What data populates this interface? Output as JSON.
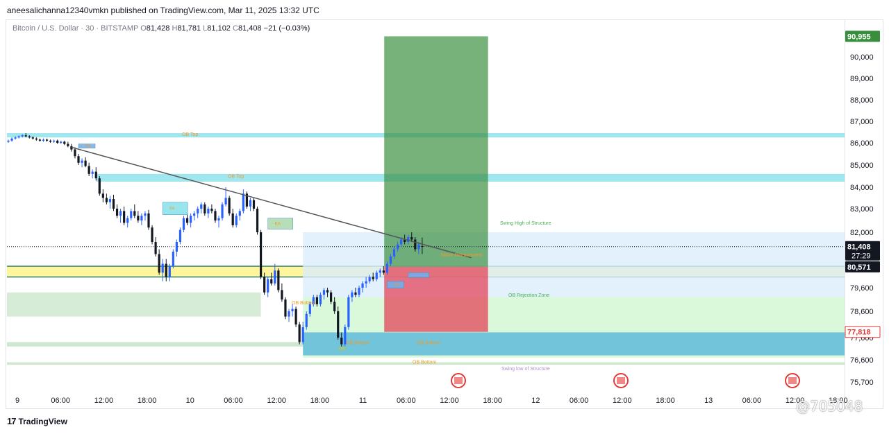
{
  "header": {
    "publisher": "aneesalichanna12340vmkn published on TradingView.com, Mar 11, 2025 13:32 UTC",
    "symbol_desc": "Bitcoin / U.S. Dollar · 30 · BITSTAMP",
    "o_label": "O",
    "o_value": "81,428",
    "h_label": "H",
    "h_value": "81,781",
    "l_label": "L",
    "l_value": "81,102",
    "c_label": "C",
    "c_value": "81,408",
    "change": "−21 (−0.03%)"
  },
  "footer": {
    "logo_text": "TradingView",
    "watermark": "@705048"
  },
  "colors": {
    "bull": "#131722",
    "bear": "#2962ff",
    "ob_top": "#80deea",
    "yellow_zone": "#fff59d",
    "green_zone": "#c8e6c9",
    "tp_zone": "#388e3c",
    "sl_zone": "#e53950",
    "blue_box": "#4fb3d9",
    "label_orange": "#ef9a2a",
    "label_green": "#4caf50",
    "accent_price": "#131722",
    "tp_label_bg": "#388e3c",
    "sl_label_bg": "#e53935"
  },
  "chart_data": {
    "type": "candlestick",
    "title": "Bitcoin / U.S. Dollar · 30 · BITSTAMP",
    "x_tick_labels": [
      "9",
      "06:00",
      "12:00",
      "18:00",
      "10",
      "06:00",
      "12:00",
      "18:00",
      "11",
      "06:00",
      "12:00",
      "18:00",
      "12",
      "06:00",
      "12:00",
      "18:00",
      "13",
      "06:00",
      "12:00",
      "18:00"
    ],
    "y_tick_labels": [
      75700,
      76600,
      77600,
      78600,
      79600,
      80600,
      82000,
      83000,
      84000,
      85000,
      86000,
      87000,
      88000,
      89000,
      90000
    ],
    "ylim": [
      75300,
      91300
    ],
    "price_labels": [
      {
        "text": "90,955",
        "value": 90955,
        "kind": "tp"
      },
      {
        "text": "81,408",
        "value": 81408,
        "kind": "last",
        "sub": "27:29"
      },
      {
        "text": "80,571",
        "value": 80571,
        "kind": "mark"
      },
      {
        "text": "77,818",
        "value": 77818,
        "kind": "sl"
      }
    ],
    "position": {
      "entry": 80571,
      "target": 90955,
      "stop": 77818,
      "x_start_index": 104,
      "x_end_index": 134
    },
    "trendline": {
      "from": {
        "index": 18,
        "price": 85800
      },
      "to": {
        "index": 132,
        "price": 80950
      }
    },
    "zones": [
      {
        "kind": "ob_top",
        "label": "OB Top",
        "y_top": 86450,
        "y_bottom": 86250,
        "x_from_index": 0
      },
      {
        "kind": "ob_top",
        "label": "OB Top",
        "y_top": 84600,
        "y_bottom": 84250,
        "x_from_index": 25
      },
      {
        "kind": "yellow",
        "label": "",
        "y_top": 80600,
        "y_bottom": 80100,
        "x_from_index": 0
      },
      {
        "kind": "green_band",
        "label": "OB Bottom",
        "y_top": 79400,
        "y_bottom": 78400,
        "x_from_index": 0,
        "x_to_index": 72
      },
      {
        "kind": "green_thin",
        "label": "",
        "y_top": 77400,
        "y_bottom": 77200,
        "x_from_index": 0
      },
      {
        "kind": "green_thin",
        "label": "OB Bottom",
        "y_top": 76500,
        "y_bottom": 76400,
        "x_from_index": 0
      },
      {
        "kind": "light_blue",
        "label": "",
        "y_top": 82000,
        "y_bottom": 79200,
        "x_from_index": 84
      },
      {
        "kind": "light_green",
        "label": "",
        "y_top": 79200,
        "y_bottom": 76700,
        "x_from_index": 84
      },
      {
        "kind": "blue_box",
        "label": "OB Bottom",
        "y_top": 77800,
        "y_bottom": 76800,
        "x_from_index": 84
      }
    ],
    "annotations": [
      "Swing High of Structure",
      "Minor Retracement",
      "OB Rejection Zone",
      "Swing low of Structure",
      "OB Top",
      "OB Top",
      "OB Bottom",
      "OB Bottom",
      "OB Bottom",
      "OB Bottom",
      "FA",
      "FA",
      "EA",
      "FA",
      "sell"
    ],
    "candles": [
      [
        86050,
        86150,
        86000,
        86100
      ],
      [
        86100,
        86250,
        86050,
        86200
      ],
      [
        86200,
        86300,
        86150,
        86250
      ],
      [
        86250,
        86350,
        86200,
        86300
      ],
      [
        86300,
        86400,
        86250,
        86350
      ],
      [
        86350,
        86450,
        86250,
        86300
      ],
      [
        86300,
        86350,
        86200,
        86250
      ],
      [
        86250,
        86300,
        86150,
        86200
      ],
      [
        86200,
        86250,
        86100,
        86150
      ],
      [
        86150,
        86200,
        86050,
        86100
      ],
      [
        86100,
        86200,
        86050,
        86150
      ],
      [
        86150,
        86200,
        86050,
        86100
      ],
      [
        86100,
        86150,
        86000,
        86050
      ],
      [
        86050,
        86150,
        86000,
        86100
      ],
      [
        86100,
        86150,
        85950,
        86000
      ],
      [
        86000,
        86100,
        85950,
        86050
      ],
      [
        86050,
        86100,
        85900,
        85950
      ],
      [
        85950,
        86050,
        85800,
        85850
      ],
      [
        85850,
        85950,
        85600,
        85700
      ],
      [
        85700,
        85800,
        85300,
        85400
      ],
      [
        85400,
        85500,
        85000,
        85100
      ],
      [
        85100,
        85300,
        84900,
        85200
      ],
      [
        85200,
        85350,
        84900,
        84950
      ],
      [
        84950,
        85100,
        84500,
        84600
      ],
      [
        84600,
        84800,
        84400,
        84700
      ],
      [
        84700,
        84900,
        84300,
        84400
      ],
      [
        84400,
        84500,
        83600,
        83700
      ],
      [
        83700,
        83900,
        83300,
        83500
      ],
      [
        83500,
        83700,
        83200,
        83300
      ],
      [
        83300,
        83600,
        83000,
        83450
      ],
      [
        83450,
        83650,
        82900,
        83000
      ],
      [
        83000,
        83200,
        82600,
        82700
      ],
      [
        82700,
        83000,
        82400,
        82900
      ],
      [
        82900,
        83100,
        82300,
        82400
      ],
      [
        82400,
        82700,
        82200,
        82600
      ],
      [
        82600,
        83000,
        82500,
        82900
      ],
      [
        82900,
        83200,
        82600,
        82700
      ],
      [
        82700,
        82900,
        82400,
        82500
      ],
      [
        82500,
        82800,
        82300,
        82700
      ],
      [
        82700,
        82900,
        82500,
        82800
      ],
      [
        82800,
        82950,
        82100,
        82200
      ],
      [
        82200,
        82300,
        81500,
        81600
      ],
      [
        81600,
        81800,
        81000,
        81100
      ],
      [
        81100,
        81300,
        80200,
        80300
      ],
      [
        80300,
        80900,
        79900,
        80700
      ],
      [
        80700,
        80900,
        79900,
        80100
      ],
      [
        80100,
        80700,
        79900,
        80600
      ],
      [
        80600,
        81300,
        80500,
        81200
      ],
      [
        81200,
        81700,
        81000,
        81600
      ],
      [
        81600,
        82200,
        81500,
        82100
      ],
      [
        82100,
        82700,
        82000,
        82600
      ],
      [
        82600,
        82800,
        82300,
        82400
      ],
      [
        82400,
        82800,
        82200,
        82700
      ],
      [
        82700,
        82900,
        82500,
        82800
      ],
      [
        82800,
        83100,
        82600,
        83000
      ],
      [
        83000,
        83300,
        82800,
        83200
      ],
      [
        83200,
        83300,
        82700,
        82800
      ],
      [
        82800,
        83100,
        82600,
        83000
      ],
      [
        83000,
        83200,
        82800,
        82900
      ],
      [
        82900,
        83000,
        82400,
        82500
      ],
      [
        82500,
        82700,
        82200,
        82600
      ],
      [
        82600,
        83300,
        82500,
        83200
      ],
      [
        83200,
        84000,
        83100,
        83500
      ],
      [
        83500,
        83600,
        82700,
        82800
      ],
      [
        82800,
        83000,
        82200,
        82300
      ],
      [
        82300,
        82800,
        82200,
        82700
      ],
      [
        82700,
        83000,
        82500,
        82900
      ],
      [
        82900,
        83900,
        82800,
        83700
      ],
      [
        83700,
        83800,
        83000,
        83100
      ],
      [
        83100,
        83500,
        82900,
        83400
      ],
      [
        83400,
        83500,
        82900,
        83000
      ],
      [
        83000,
        83100,
        81900,
        82000
      ],
      [
        82000,
        82100,
        80000,
        80100
      ],
      [
        80100,
        80300,
        79300,
        79400
      ],
      [
        79400,
        80100,
        79200,
        80000
      ],
      [
        80000,
        80300,
        79700,
        79800
      ],
      [
        79800,
        80700,
        79700,
        80400
      ],
      [
        80400,
        80500,
        79400,
        79500
      ],
      [
        79500,
        79800,
        79000,
        79100
      ],
      [
        79100,
        79200,
        78300,
        78400
      ],
      [
        78400,
        78700,
        78200,
        78600
      ],
      [
        78600,
        78900,
        78400,
        78700
      ],
      [
        78700,
        78800,
        78000,
        78100
      ],
      [
        78100,
        78200,
        77300,
        77400
      ],
      [
        77400,
        78200,
        77300,
        78000
      ],
      [
        78000,
        78600,
        77900,
        78500
      ],
      [
        78500,
        79000,
        78400,
        78900
      ],
      [
        78900,
        79300,
        78800,
        79200
      ],
      [
        79200,
        79300,
        78800,
        78900
      ],
      [
        78900,
        79400,
        78800,
        79300
      ],
      [
        79300,
        79600,
        79100,
        79500
      ],
      [
        79500,
        79600,
        79200,
        79400
      ],
      [
        79400,
        79500,
        78900,
        79000
      ],
      [
        79000,
        79200,
        78500,
        78600
      ],
      [
        78600,
        78800,
        77500,
        77600
      ],
      [
        77600,
        77800,
        77200,
        77300
      ],
      [
        77300,
        78100,
        77200,
        78000
      ],
      [
        78000,
        79300,
        77900,
        79200
      ],
      [
        79200,
        79500,
        79000,
        79400
      ],
      [
        79400,
        79600,
        79200,
        79300
      ],
      [
        79300,
        79700,
        79200,
        79600
      ],
      [
        79600,
        79900,
        79400,
        79800
      ],
      [
        79800,
        80100,
        79600,
        79900
      ],
      [
        79900,
        80200,
        79800,
        80100
      ],
      [
        80100,
        80300,
        79900,
        80000
      ],
      [
        80000,
        80400,
        79900,
        80300
      ],
      [
        80300,
        80500,
        80100,
        80400
      ],
      [
        80400,
        80600,
        80200,
        80300
      ],
      [
        80300,
        80800,
        80200,
        80700
      ],
      [
        80700,
        81100,
        80600,
        81000
      ],
      [
        81000,
        81400,
        80900,
        81300
      ],
      [
        81300,
        81600,
        81200,
        81500
      ],
      [
        81500,
        81800,
        81400,
        81700
      ],
      [
        81700,
        81900,
        81500,
        81600
      ],
      [
        81600,
        81900,
        81500,
        81800
      ],
      [
        81800,
        82000,
        81600,
        81700
      ],
      [
        81700,
        81800,
        81200,
        81300
      ],
      [
        81300,
        81600,
        81100,
        81500
      ],
      [
        81428,
        81781,
        81102,
        81408
      ]
    ]
  }
}
